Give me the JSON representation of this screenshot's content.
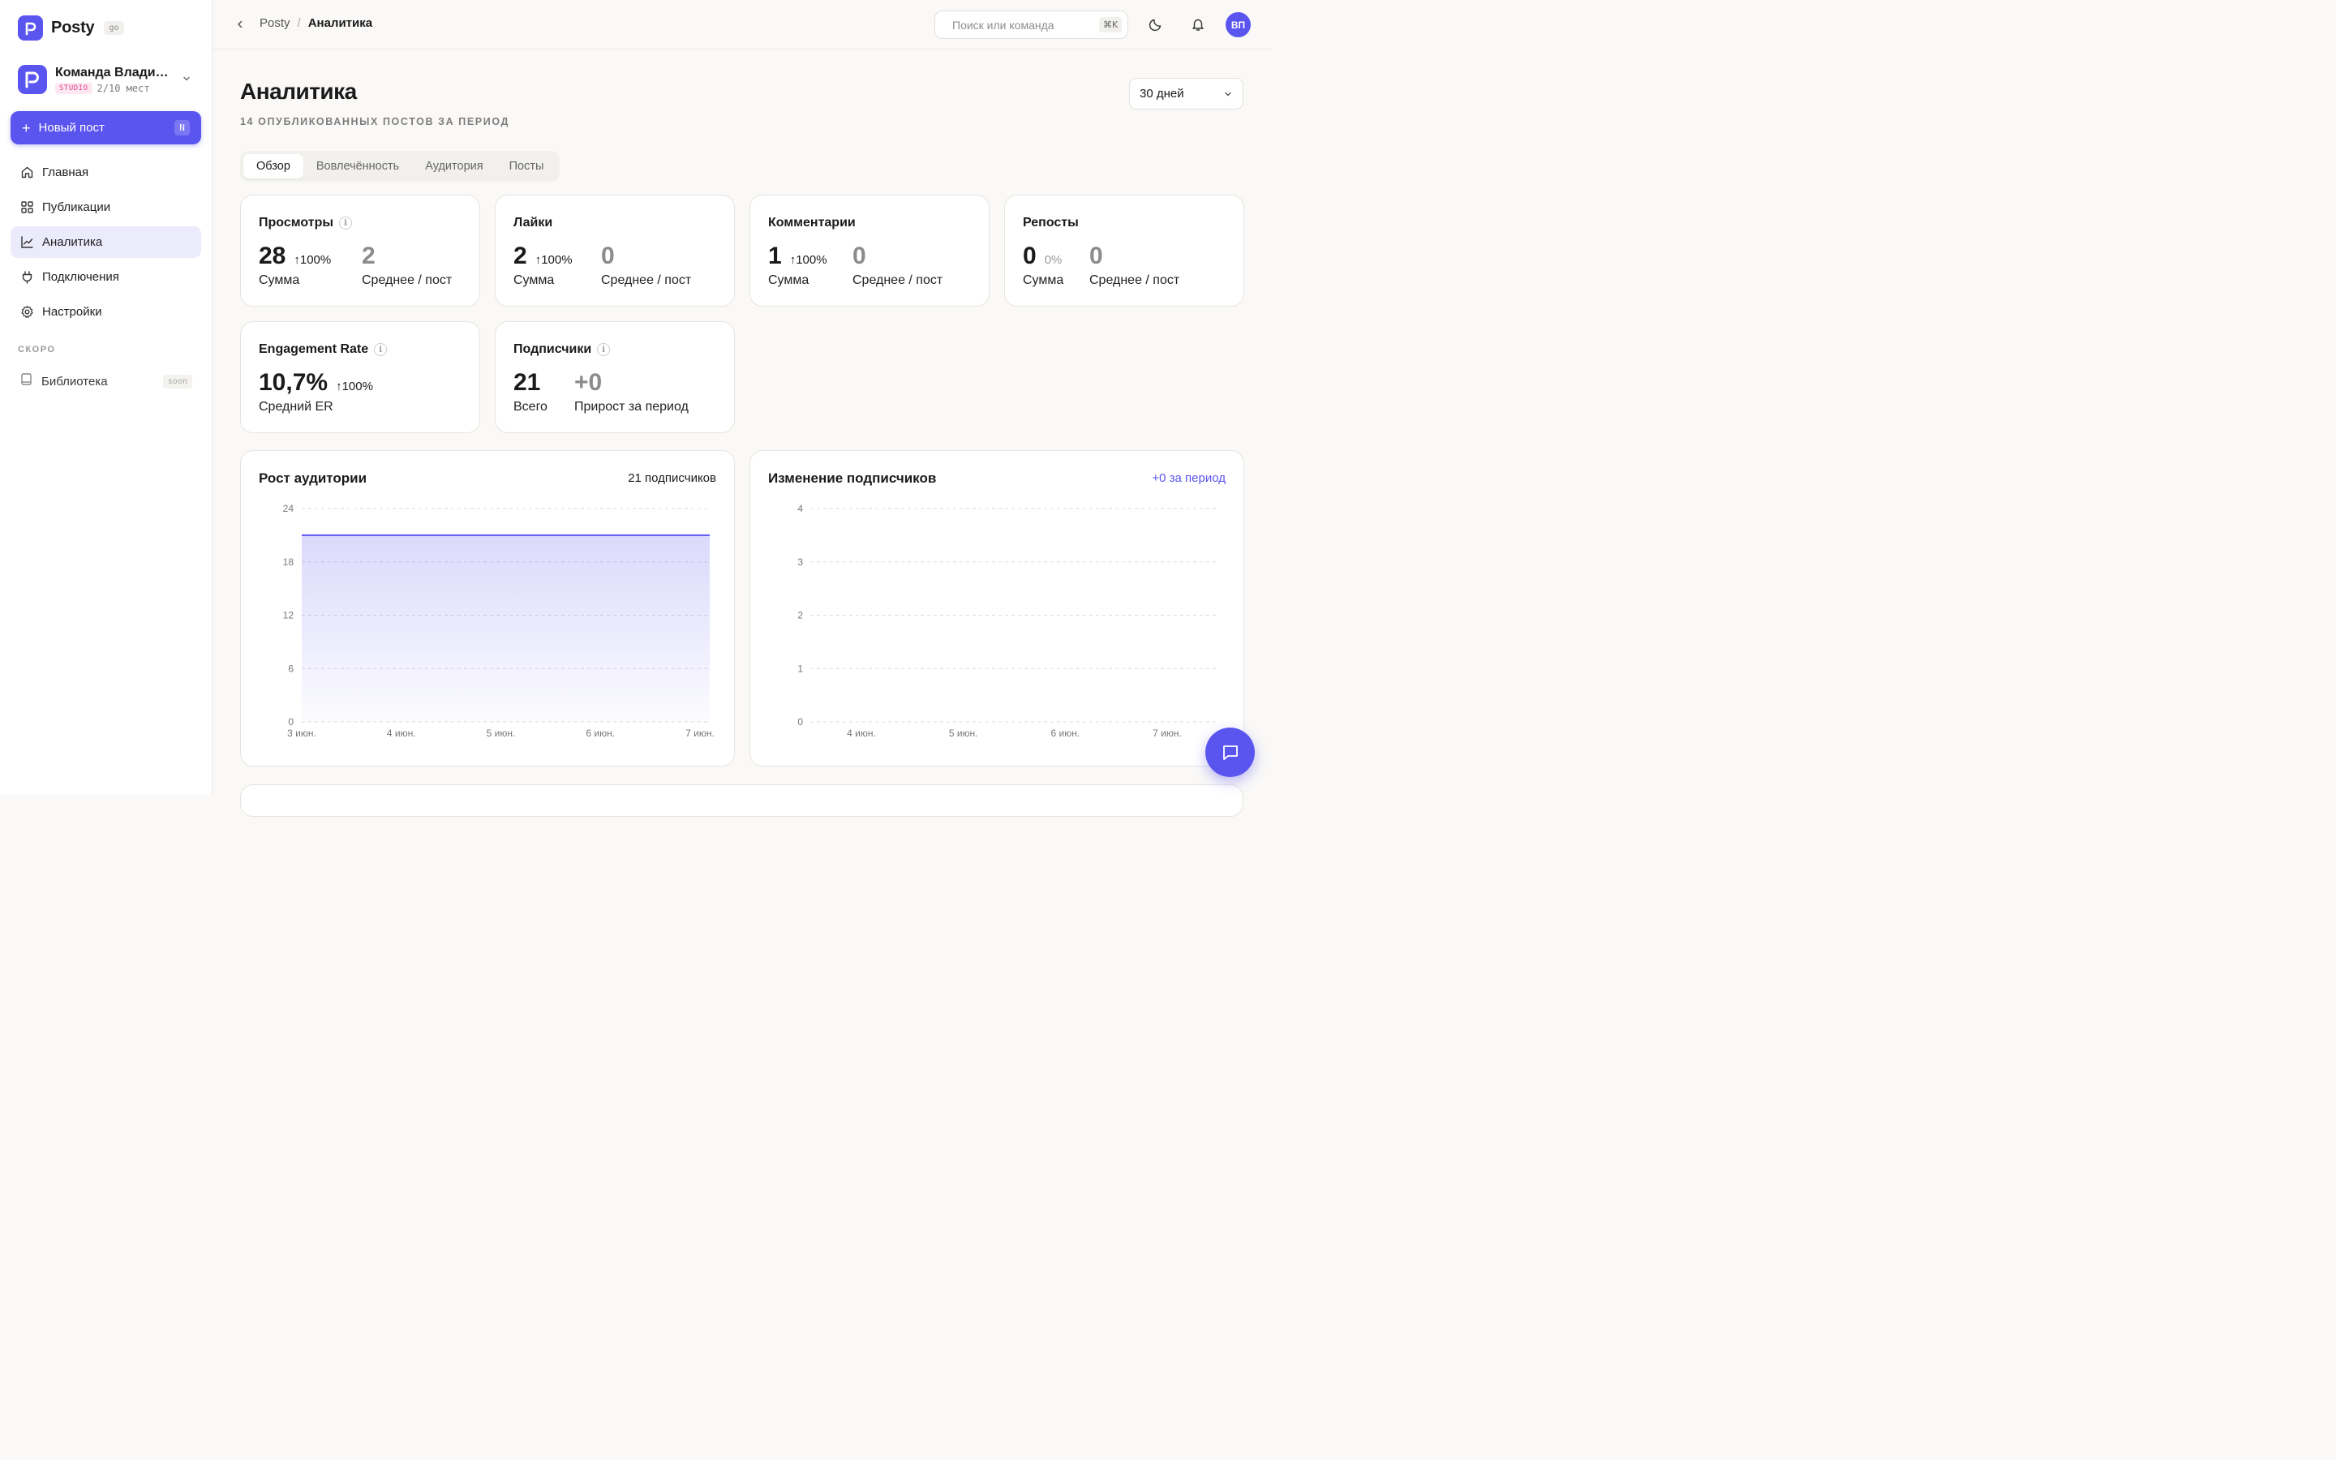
{
  "brand": {
    "name": "Posty",
    "badge": "go"
  },
  "team": {
    "name": "Команда Владимира",
    "plan": "STUDIO",
    "seats": "2/10 мест"
  },
  "sidebar": {
    "new_post": {
      "label": "Новый пост",
      "shortcut": "N"
    },
    "items": [
      {
        "label": "Главная",
        "icon": "home-icon",
        "active": false
      },
      {
        "label": "Публикации",
        "icon": "grid-icon",
        "active": false
      },
      {
        "label": "Аналитика",
        "icon": "chart-line-icon",
        "active": true
      },
      {
        "label": "Подключения",
        "icon": "plug-icon",
        "active": false
      },
      {
        "label": "Настройки",
        "icon": "gear-icon",
        "active": false
      }
    ],
    "soon_section": "СКОРО",
    "soon_items": [
      {
        "label": "Библиотека",
        "icon": "book-icon",
        "badge": "soon"
      }
    ]
  },
  "topbar": {
    "breadcrumb": {
      "root": "Posty",
      "separator": "/",
      "current": "Аналитика"
    },
    "search": {
      "placeholder": "Поиск или команда",
      "shortcut": "⌘K"
    },
    "avatar_initials": "ВП"
  },
  "page": {
    "title": "Аналитика",
    "subtitle": "14 ОПУБЛИКОВАННЫХ ПОСТОВ ЗА ПЕРИОД",
    "period": "30 дней",
    "tabs": [
      {
        "label": "Обзор",
        "active": true
      },
      {
        "label": "Вовлечённость",
        "active": false
      },
      {
        "label": "Аудитория",
        "active": false
      },
      {
        "label": "Посты",
        "active": false
      }
    ]
  },
  "stats": {
    "views": {
      "title": "Просмотры",
      "sum": "28",
      "delta": "100%",
      "sum_label": "Сумма",
      "avg": "2",
      "avg_label": "Среднее / пост"
    },
    "likes": {
      "title": "Лайки",
      "sum": "2",
      "delta": "100%",
      "sum_label": "Сумма",
      "avg": "0",
      "avg_label": "Среднее / пост"
    },
    "comments": {
      "title": "Комментарии",
      "sum": "1",
      "delta": "100%",
      "sum_label": "Сумма",
      "avg": "0",
      "avg_label": "Среднее / пост"
    },
    "reposts": {
      "title": "Репосты",
      "sum": "0",
      "delta": "0%",
      "sum_label": "Сумма",
      "avg": "0",
      "avg_label": "Среднее / пост"
    },
    "engagement": {
      "title": "Engagement Rate",
      "value": "10,7%",
      "delta": "100%",
      "label": "Средний ER"
    },
    "subscribers": {
      "title": "Подписчики",
      "total": "21",
      "total_label": "Всего",
      "growth": "+0",
      "growth_label": "Прирост за период"
    }
  },
  "colors": {
    "accent": "#5b55f0",
    "accent_light": "#ecebfc"
  },
  "chart_data": [
    {
      "type": "area",
      "title": "Рост аудитории",
      "meta": "21 подписчиков",
      "x": [
        "3 июн.",
        "4 июн.",
        "5 июн.",
        "6 июн.",
        "7 июн."
      ],
      "series": [
        {
          "values": [
            21,
            21,
            21,
            21,
            21
          ]
        }
      ],
      "ylim": [
        0,
        24
      ],
      "yticks": [
        "24",
        "18",
        "12",
        "6",
        "0"
      ],
      "grid": true
    },
    {
      "type": "line",
      "title": "Изменение подписчиков",
      "meta": "+0 за период",
      "x": [
        "4 июн.",
        "5 июн.",
        "6 июн.",
        "7 июн."
      ],
      "series": [],
      "ylim": [
        0,
        4
      ],
      "yticks": [
        "4",
        "3",
        "2",
        "1",
        "0"
      ],
      "grid": true
    }
  ]
}
